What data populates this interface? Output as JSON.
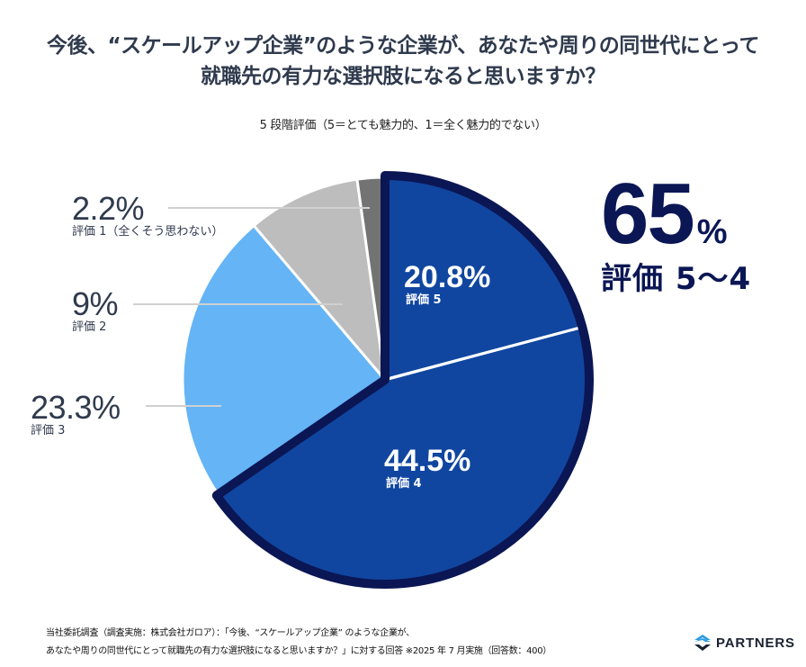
{
  "title_line1": "今後、“スケールアップ企業”のような企業が、あなたや周りの同世代にとって",
  "title_line2": "就職先の有力な選択肢になると思いますか？",
  "subtitle": "5 段階評価（5＝とても魅力的、1＝全く魅力的でない）",
  "highlight": {
    "value": "65",
    "unit": "%",
    "label": "評価 5〜4"
  },
  "footnote": {
    "line1": "当社委託調査（調査実施：株式会社ガロア）：「今後、“スケールアップ企業” のような企業が、",
    "line2": "あなたや周りの同世代にとって就職先の有力な選択肢になると思いますか？」に対する回答 ※2025 年 7 月実施（回答数：400）"
  },
  "logo": {
    "name": "PARTNERS",
    "icon": "partners-logo-icon"
  },
  "colors": {
    "rating5": "#1046a0",
    "rating4": "#1046a0",
    "rating3": "#64b4f6",
    "rating2": "#bdbdbd",
    "rating1": "#737373",
    "outline": "#0b1654",
    "text": "#2f3a4d"
  },
  "chart_data": {
    "type": "pie",
    "title": "今後、“スケールアップ企業”のような企業が、あなたや周りの同世代にとって就職先の有力な選択肢になると思いますか？",
    "subtitle": "5 段階評価（5＝とても魅力的、1＝全く魅力的でない）",
    "direction": "clockwise-from-top",
    "slices": [
      {
        "label": "評価 5",
        "value": 20.8,
        "display": "20.8%",
        "color": "#1046a0",
        "label_position": "inside"
      },
      {
        "label": "評価 4",
        "value": 44.5,
        "display": "44.5%",
        "color": "#1046a0",
        "label_position": "inside"
      },
      {
        "label": "評価 3",
        "value": 23.3,
        "display": "23.3%",
        "color": "#64b4f6",
        "label_position": "outside-left"
      },
      {
        "label": "評価 2",
        "value": 9,
        "display": "9%",
        "color": "#bdbdbd",
        "label_position": "outside-left"
      },
      {
        "label": "評価 1（全くそう思わない）",
        "value": 2.2,
        "display": "2.2%",
        "color": "#737373",
        "label_position": "outside-left"
      }
    ],
    "highlighted_group": {
      "slices": [
        "評価 5",
        "評価 4"
      ],
      "total": 65,
      "label": "評価 5〜4"
    }
  }
}
